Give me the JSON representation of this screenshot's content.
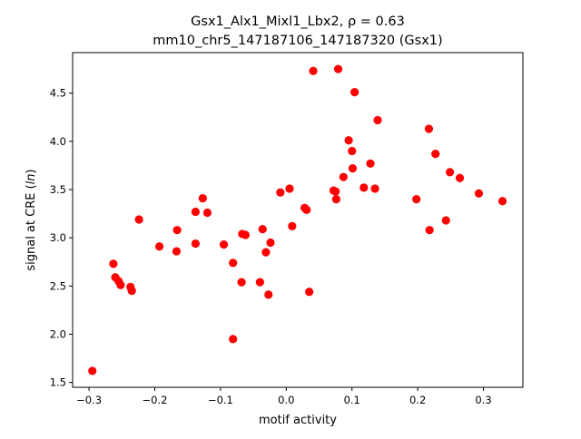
{
  "chart_data": {
    "type": "scatter",
    "title_line1": "Gsx1_Alx1_Mixl1_Lbx2, ρ = 0.63",
    "title_line2": "mm10_chr5_147187106_147187320 (Gsx1)",
    "xlabel": "motif activity",
    "ylabel_prefix": "signal at CRE (",
    "ylabel_italic": "ln",
    "ylabel_suffix": ")",
    "xlim": [
      -0.325,
      0.36
    ],
    "ylim": [
      1.45,
      4.92
    ],
    "xticks": [
      {
        "value": -0.3,
        "label": "−0.3"
      },
      {
        "value": -0.2,
        "label": "−0.2"
      },
      {
        "value": -0.1,
        "label": "−0.1"
      },
      {
        "value": 0.0,
        "label": "0.0"
      },
      {
        "value": 0.1,
        "label": "0.1"
      },
      {
        "value": 0.2,
        "label": "0.2"
      },
      {
        "value": 0.3,
        "label": "0.3"
      }
    ],
    "yticks": [
      {
        "value": 1.5,
        "label": "1.5"
      },
      {
        "value": 2.0,
        "label": "2.0"
      },
      {
        "value": 2.5,
        "label": "2.5"
      },
      {
        "value": 3.0,
        "label": "3.0"
      },
      {
        "value": 3.5,
        "label": "3.5"
      },
      {
        "value": 4.0,
        "label": "4.0"
      },
      {
        "value": 4.5,
        "label": "4.5"
      }
    ],
    "grid": false,
    "marker_color": "#ff0000",
    "points": [
      {
        "x": -0.295,
        "y": 1.62
      },
      {
        "x": -0.263,
        "y": 2.73
      },
      {
        "x": -0.26,
        "y": 2.59
      },
      {
        "x": -0.255,
        "y": 2.55
      },
      {
        "x": -0.252,
        "y": 2.51
      },
      {
        "x": -0.237,
        "y": 2.49
      },
      {
        "x": -0.235,
        "y": 2.45
      },
      {
        "x": -0.224,
        "y": 3.19
      },
      {
        "x": -0.193,
        "y": 2.91
      },
      {
        "x": -0.167,
        "y": 2.86
      },
      {
        "x": -0.166,
        "y": 3.08
      },
      {
        "x": -0.138,
        "y": 2.94
      },
      {
        "x": -0.138,
        "y": 3.27
      },
      {
        "x": -0.127,
        "y": 3.41
      },
      {
        "x": -0.12,
        "y": 3.26
      },
      {
        "x": -0.095,
        "y": 2.93
      },
      {
        "x": -0.081,
        "y": 2.74
      },
      {
        "x": -0.081,
        "y": 1.95
      },
      {
        "x": -0.068,
        "y": 2.54
      },
      {
        "x": -0.067,
        "y": 3.04
      },
      {
        "x": -0.062,
        "y": 3.03
      },
      {
        "x": -0.04,
        "y": 2.54
      },
      {
        "x": -0.036,
        "y": 3.09
      },
      {
        "x": -0.031,
        "y": 2.85
      },
      {
        "x": -0.027,
        "y": 2.41
      },
      {
        "x": -0.024,
        "y": 2.95
      },
      {
        "x": -0.009,
        "y": 3.47
      },
      {
        "x": 0.005,
        "y": 3.51
      },
      {
        "x": 0.009,
        "y": 3.12
      },
      {
        "x": 0.028,
        "y": 3.31
      },
      {
        "x": 0.031,
        "y": 3.29
      },
      {
        "x": 0.035,
        "y": 2.44
      },
      {
        "x": 0.041,
        "y": 4.73
      },
      {
        "x": 0.072,
        "y": 3.49
      },
      {
        "x": 0.075,
        "y": 3.48
      },
      {
        "x": 0.076,
        "y": 3.4
      },
      {
        "x": 0.079,
        "y": 4.75
      },
      {
        "x": 0.087,
        "y": 3.63
      },
      {
        "x": 0.095,
        "y": 4.01
      },
      {
        "x": 0.1,
        "y": 3.9
      },
      {
        "x": 0.101,
        "y": 3.72
      },
      {
        "x": 0.104,
        "y": 4.51
      },
      {
        "x": 0.118,
        "y": 3.52
      },
      {
        "x": 0.128,
        "y": 3.77
      },
      {
        "x": 0.135,
        "y": 3.51
      },
      {
        "x": 0.139,
        "y": 4.22
      },
      {
        "x": 0.198,
        "y": 3.4
      },
      {
        "x": 0.217,
        "y": 4.13
      },
      {
        "x": 0.218,
        "y": 3.08
      },
      {
        "x": 0.227,
        "y": 3.87
      },
      {
        "x": 0.243,
        "y": 3.18
      },
      {
        "x": 0.249,
        "y": 3.68
      },
      {
        "x": 0.264,
        "y": 3.62
      },
      {
        "x": 0.293,
        "y": 3.46
      },
      {
        "x": 0.329,
        "y": 3.38
      }
    ]
  }
}
